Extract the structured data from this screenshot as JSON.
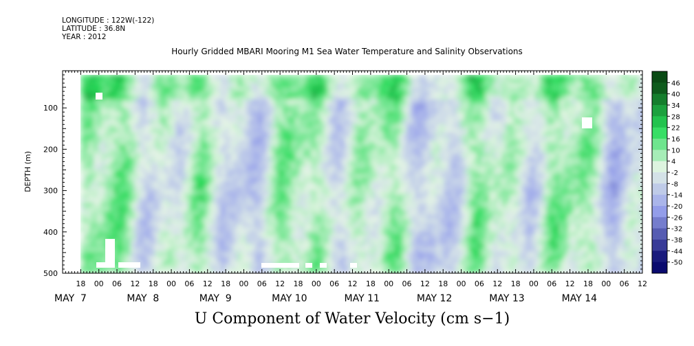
{
  "header": {
    "longitude": "LONGITUDE : 122W(-122)",
    "latitude": "LATITUDE : 36.8N",
    "year": "YEAR : 2012"
  },
  "chart_data": {
    "type": "heatmap",
    "title": "Hourly Gridded MBARI Mooring M1 Sea Water Temperature and Salinity Observations",
    "variable_label": "U Component of Water Velocity (cm s−1)",
    "ylabel": "DEPTH (m)",
    "ylim": [
      500,
      10
    ],
    "data_depth_range": [
      20,
      490
    ],
    "yticks": [
      100,
      200,
      300,
      400,
      500
    ],
    "xlim_hours": [
      -12,
      180
    ],
    "hour_ticks": [
      "18",
      "00",
      "06",
      "12",
      "18",
      "00",
      "06",
      "12",
      "18",
      "00",
      "06",
      "12",
      "18",
      "00",
      "06",
      "12",
      "18",
      "00",
      "06",
      "12",
      "18",
      "00",
      "06",
      "12",
      "18",
      "00",
      "06",
      "12",
      "18",
      "00",
      "06",
      "12"
    ],
    "hour_tick_start": -6,
    "hour_tick_step": 6,
    "day_labels": [
      "MAY  7",
      "MAY  8",
      "MAY  9",
      "MAY 10",
      "MAY 11",
      "MAY 12",
      "MAY 13",
      "MAY 14"
    ],
    "day_label_hours": [
      -12,
      12,
      36,
      60,
      84,
      108,
      132,
      156
    ],
    "colorbar": {
      "levels": [
        -50,
        -44,
        -38,
        -32,
        -26,
        -20,
        -14,
        -8,
        -2,
        4,
        10,
        16,
        22,
        28,
        34,
        40,
        46
      ],
      "labels": [
        "46",
        "40",
        "34",
        "28",
        "22",
        "16",
        "10",
        "4",
        "-2",
        "-8",
        "-14",
        "-20",
        "-26",
        "-32",
        "-38",
        "-44",
        "-50"
      ],
      "low_color": "#0a0a6e",
      "mid_color": "#e6f5e6",
      "high_color": "#0a4a14"
    },
    "grid": false,
    "legend": "colorbar-right",
    "missing_data_color": "#ffffff"
  }
}
